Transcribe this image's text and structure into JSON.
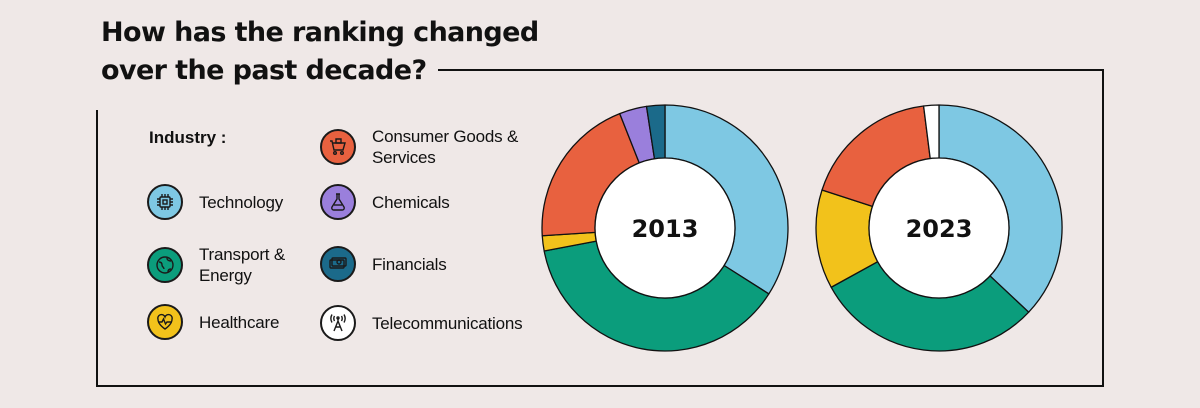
{
  "title": "How has the ranking changed\nover the past decade?",
  "legend_title": "Industry :",
  "industries": [
    {
      "name": "Technology",
      "color": "#7ec8e3",
      "icon": "chip-icon"
    },
    {
      "name": "Transport &\nEnergy",
      "color": "#0b9d7c",
      "icon": "globe-icon"
    },
    {
      "name": "Healthcare",
      "color": "#f2c21b",
      "icon": "heartbeat-icon"
    },
    {
      "name": "Consumer Goods &\nServices",
      "color": "#e8613f",
      "icon": "shopping-cart-icon"
    },
    {
      "name": "Chemicals",
      "color": "#9a7fdc",
      "icon": "flask-icon"
    },
    {
      "name": "Financials",
      "color": "#1b6a8a",
      "icon": "money-icon"
    },
    {
      "name": "Telecommunications",
      "color": "#ffffff",
      "icon": "antenna-icon"
    }
  ],
  "chart_data": [
    {
      "type": "pie",
      "center_label": "2013",
      "categories": [
        "Technology",
        "Transport & Energy",
        "Healthcare",
        "Consumer Goods & Services",
        "Chemicals",
        "Financials"
      ],
      "values": [
        34,
        38,
        2,
        20,
        3.6,
        2.4
      ]
    },
    {
      "type": "pie",
      "center_label": "2023",
      "categories": [
        "Technology",
        "Transport & Energy",
        "Healthcare",
        "Consumer Goods & Services",
        "Telecommunications"
      ],
      "values": [
        37,
        30,
        13,
        18,
        2
      ]
    }
  ]
}
